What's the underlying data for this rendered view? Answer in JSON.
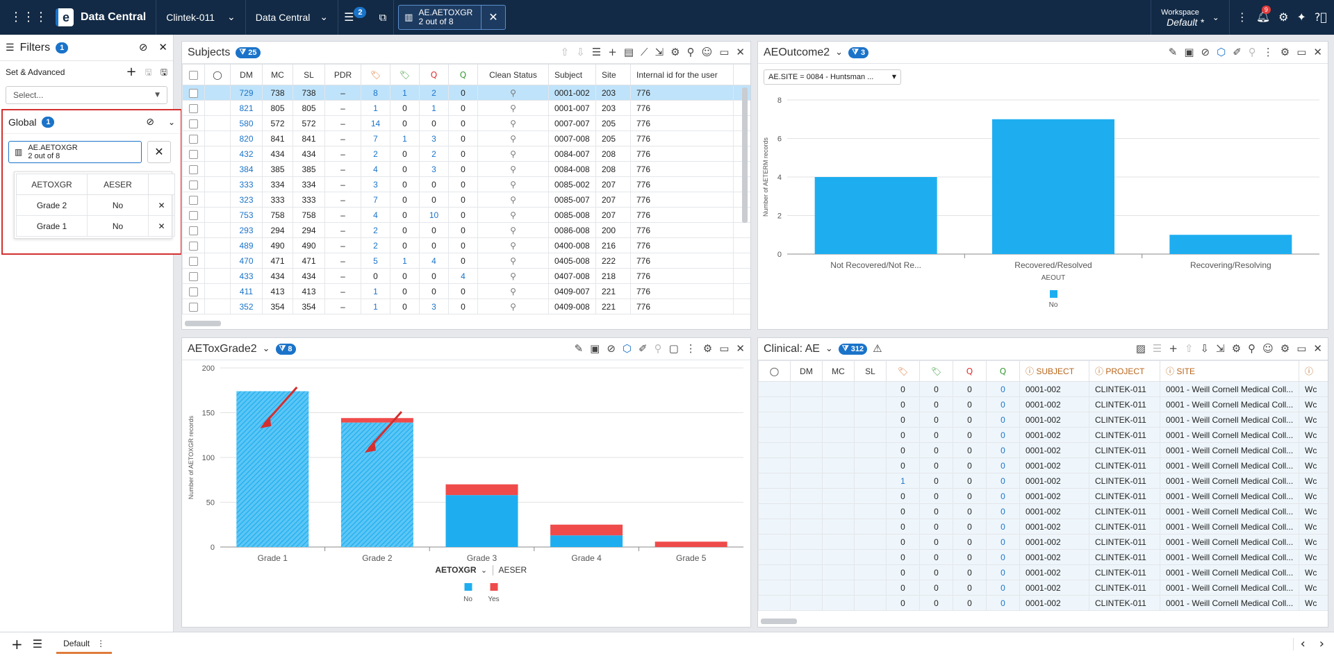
{
  "app": {
    "name": "Data Central"
  },
  "topbar": {
    "project": "Clintek-011",
    "module": "Data Central",
    "filter_count": "2",
    "active_filter": {
      "title": "AE.AETOXGR",
      "sub": "2 out of 8"
    },
    "workspace_label": "Workspace",
    "workspace_name": "Default",
    "workspace_star": "*",
    "notification_count": "9"
  },
  "filters": {
    "title": "Filters",
    "count": "1",
    "set_advanced": "Set & Advanced",
    "select_placeholder": "Select...",
    "global": {
      "title": "Global",
      "count": "1",
      "chip_title": "AE.AETOXGR",
      "chip_sub": "2 out of 8",
      "columns": [
        "AETOXGR",
        "AESER"
      ],
      "rows": [
        {
          "a": "Grade 2",
          "b": "No"
        },
        {
          "a": "Grade 1",
          "b": "No"
        }
      ]
    }
  },
  "subjects": {
    "title": "Subjects",
    "count": "25",
    "columns": [
      "DM",
      "MC",
      "SL",
      "PDR",
      "Clean Status",
      "Subject",
      "Site",
      "Internal id for the user"
    ],
    "rows": [
      {
        "dm": "729",
        "mc": "738",
        "sl": "738",
        "pdr": "–",
        "t1": "8",
        "t2": "1",
        "q1": "2",
        "q2": "0",
        "subject": "0001-002",
        "site": "203",
        "iid": "776"
      },
      {
        "dm": "821",
        "mc": "805",
        "sl": "805",
        "pdr": "–",
        "t1": "1",
        "t2": "0",
        "q1": "1",
        "q2": "0",
        "subject": "0001-007",
        "site": "203",
        "iid": "776"
      },
      {
        "dm": "580",
        "mc": "572",
        "sl": "572",
        "pdr": "–",
        "t1": "14",
        "t2": "0",
        "q1": "0",
        "q2": "0",
        "subject": "0007-007",
        "site": "205",
        "iid": "776"
      },
      {
        "dm": "820",
        "mc": "841",
        "sl": "841",
        "pdr": "–",
        "t1": "7",
        "t2": "1",
        "q1": "3",
        "q2": "0",
        "subject": "0007-008",
        "site": "205",
        "iid": "776"
      },
      {
        "dm": "432",
        "mc": "434",
        "sl": "434",
        "pdr": "–",
        "t1": "2",
        "t2": "0",
        "q1": "2",
        "q2": "0",
        "subject": "0084-007",
        "site": "208",
        "iid": "776"
      },
      {
        "dm": "384",
        "mc": "385",
        "sl": "385",
        "pdr": "–",
        "t1": "4",
        "t2": "0",
        "q1": "3",
        "q2": "0",
        "subject": "0084-008",
        "site": "208",
        "iid": "776"
      },
      {
        "dm": "333",
        "mc": "334",
        "sl": "334",
        "pdr": "–",
        "t1": "3",
        "t2": "0",
        "q1": "0",
        "q2": "0",
        "subject": "0085-002",
        "site": "207",
        "iid": "776"
      },
      {
        "dm": "323",
        "mc": "333",
        "sl": "333",
        "pdr": "–",
        "t1": "7",
        "t2": "0",
        "q1": "0",
        "q2": "0",
        "subject": "0085-007",
        "site": "207",
        "iid": "776"
      },
      {
        "dm": "753",
        "mc": "758",
        "sl": "758",
        "pdr": "–",
        "t1": "4",
        "t2": "0",
        "q1": "10",
        "q2": "0",
        "subject": "0085-008",
        "site": "207",
        "iid": "776"
      },
      {
        "dm": "293",
        "mc": "294",
        "sl": "294",
        "pdr": "–",
        "t1": "2",
        "t2": "0",
        "q1": "0",
        "q2": "0",
        "subject": "0086-008",
        "site": "200",
        "iid": "776"
      },
      {
        "dm": "489",
        "mc": "490",
        "sl": "490",
        "pdr": "–",
        "t1": "2",
        "t2": "0",
        "q1": "0",
        "q2": "0",
        "subject": "0400-008",
        "site": "216",
        "iid": "776"
      },
      {
        "dm": "470",
        "mc": "471",
        "sl": "471",
        "pdr": "–",
        "t1": "5",
        "t2": "1",
        "q1": "4",
        "q2": "0",
        "subject": "0405-008",
        "site": "222",
        "iid": "776"
      },
      {
        "dm": "433",
        "mc": "434",
        "sl": "434",
        "pdr": "–",
        "t1": "0",
        "t2": "0",
        "q1": "0",
        "q2": "4",
        "subject": "0407-008",
        "site": "218",
        "iid": "776"
      },
      {
        "dm": "411",
        "mc": "413",
        "sl": "413",
        "pdr": "–",
        "t1": "1",
        "t2": "0",
        "q1": "0",
        "q2": "0",
        "subject": "0409-007",
        "site": "221",
        "iid": "776"
      },
      {
        "dm": "352",
        "mc": "354",
        "sl": "354",
        "pdr": "–",
        "t1": "1",
        "t2": "0",
        "q1": "3",
        "q2": "0",
        "subject": "0409-008",
        "site": "221",
        "iid": "776"
      }
    ]
  },
  "outcome": {
    "title": "AEOutcome2",
    "count": "3",
    "filter_chip": "AE.SITE = 0084 - Huntsman ..."
  },
  "toxgrade": {
    "title": "AEToxGrade2",
    "count": "8",
    "x_field": "AETOXGR",
    "split_field": "AESER"
  },
  "clinical": {
    "title": "Clinical: AE",
    "count": "312",
    "columns": [
      "DM",
      "MC",
      "SL",
      "SUBJECT",
      "PROJECT",
      "SITE"
    ],
    "rows": [
      {
        "t1": "0",
        "t2": "0",
        "q1": "0",
        "q2": "0",
        "subject": "0001-002",
        "project": "CLINTEK-011",
        "site": "0001 - Weill Cornell Medical Coll...",
        "extra": "Wc"
      },
      {
        "t1": "0",
        "t2": "0",
        "q1": "0",
        "q2": "0",
        "subject": "0001-002",
        "project": "CLINTEK-011",
        "site": "0001 - Weill Cornell Medical Coll...",
        "extra": "Wc"
      },
      {
        "t1": "0",
        "t2": "0",
        "q1": "0",
        "q2": "0",
        "subject": "0001-002",
        "project": "CLINTEK-011",
        "site": "0001 - Weill Cornell Medical Coll...",
        "extra": "Wc"
      },
      {
        "t1": "0",
        "t2": "0",
        "q1": "0",
        "q2": "0",
        "subject": "0001-002",
        "project": "CLINTEK-011",
        "site": "0001 - Weill Cornell Medical Coll...",
        "extra": "Wc"
      },
      {
        "t1": "0",
        "t2": "0",
        "q1": "0",
        "q2": "0",
        "subject": "0001-002",
        "project": "CLINTEK-011",
        "site": "0001 - Weill Cornell Medical Coll...",
        "extra": "Wc"
      },
      {
        "t1": "0",
        "t2": "0",
        "q1": "0",
        "q2": "0",
        "subject": "0001-002",
        "project": "CLINTEK-011",
        "site": "0001 - Weill Cornell Medical Coll...",
        "extra": "Wc"
      },
      {
        "t1": "1",
        "t2": "0",
        "q1": "0",
        "q2": "0",
        "subject": "0001-002",
        "project": "CLINTEK-011",
        "site": "0001 - Weill Cornell Medical Coll...",
        "extra": "Wc"
      },
      {
        "t1": "0",
        "t2": "0",
        "q1": "0",
        "q2": "0",
        "subject": "0001-002",
        "project": "CLINTEK-011",
        "site": "0001 - Weill Cornell Medical Coll...",
        "extra": "Wc"
      },
      {
        "t1": "0",
        "t2": "0",
        "q1": "0",
        "q2": "0",
        "subject": "0001-002",
        "project": "CLINTEK-011",
        "site": "0001 - Weill Cornell Medical Coll...",
        "extra": "Wc"
      },
      {
        "t1": "0",
        "t2": "0",
        "q1": "0",
        "q2": "0",
        "subject": "0001-002",
        "project": "CLINTEK-011",
        "site": "0001 - Weill Cornell Medical Coll...",
        "extra": "Wc"
      },
      {
        "t1": "0",
        "t2": "0",
        "q1": "0",
        "q2": "0",
        "subject": "0001-002",
        "project": "CLINTEK-011",
        "site": "0001 - Weill Cornell Medical Coll...",
        "extra": "Wc"
      },
      {
        "t1": "0",
        "t2": "0",
        "q1": "0",
        "q2": "0",
        "subject": "0001-002",
        "project": "CLINTEK-011",
        "site": "0001 - Weill Cornell Medical Coll...",
        "extra": "Wc"
      },
      {
        "t1": "0",
        "t2": "0",
        "q1": "0",
        "q2": "0",
        "subject": "0001-002",
        "project": "CLINTEK-011",
        "site": "0001 - Weill Cornell Medical Coll...",
        "extra": "Wc"
      },
      {
        "t1": "0",
        "t2": "0",
        "q1": "0",
        "q2": "0",
        "subject": "0001-002",
        "project": "CLINTEK-011",
        "site": "0001 - Weill Cornell Medical Coll...",
        "extra": "Wc"
      },
      {
        "t1": "0",
        "t2": "0",
        "q1": "0",
        "q2": "0",
        "subject": "0001-002",
        "project": "CLINTEK-011",
        "site": "0001 - Weill Cornell Medical Coll...",
        "extra": "Wc"
      }
    ]
  },
  "bottom": {
    "tab": "Default"
  },
  "colors": {
    "accent": "#1a73c9",
    "bar_no": "#1eaef0",
    "bar_yes": "#ef4b4b",
    "highlight": "#d32f2f"
  },
  "chart_data": [
    {
      "type": "bar",
      "categories": [
        "Not Recovered/Not Re...",
        "Recovered/Resolved",
        "Recovering/Resolving"
      ],
      "series": [
        {
          "name": "No",
          "values": [
            4,
            7,
            1
          ]
        }
      ],
      "xlabel": "AEOUT",
      "ylabel": "Number of AETERM records",
      "ylim": [
        0,
        8
      ],
      "yticks": [
        0,
        2,
        4,
        6,
        8
      ],
      "legend": "bottom"
    },
    {
      "type": "bar",
      "stacked": true,
      "categories": [
        "Grade 1",
        "Grade 2",
        "Grade 3",
        "Grade 4",
        "Grade 5"
      ],
      "series": [
        {
          "name": "No",
          "values": [
            174,
            139,
            58,
            13,
            0
          ]
        },
        {
          "name": "Yes",
          "values": [
            0,
            5,
            12,
            12,
            6
          ]
        }
      ],
      "xlabel": "AETOXGR",
      "ylabel": "Number of AETOXGR records",
      "ylim": [
        0,
        200
      ],
      "yticks": [
        0,
        50,
        100,
        150,
        200
      ],
      "selected": [
        "Grade 1",
        "Grade 2"
      ],
      "legend": "bottom"
    }
  ]
}
